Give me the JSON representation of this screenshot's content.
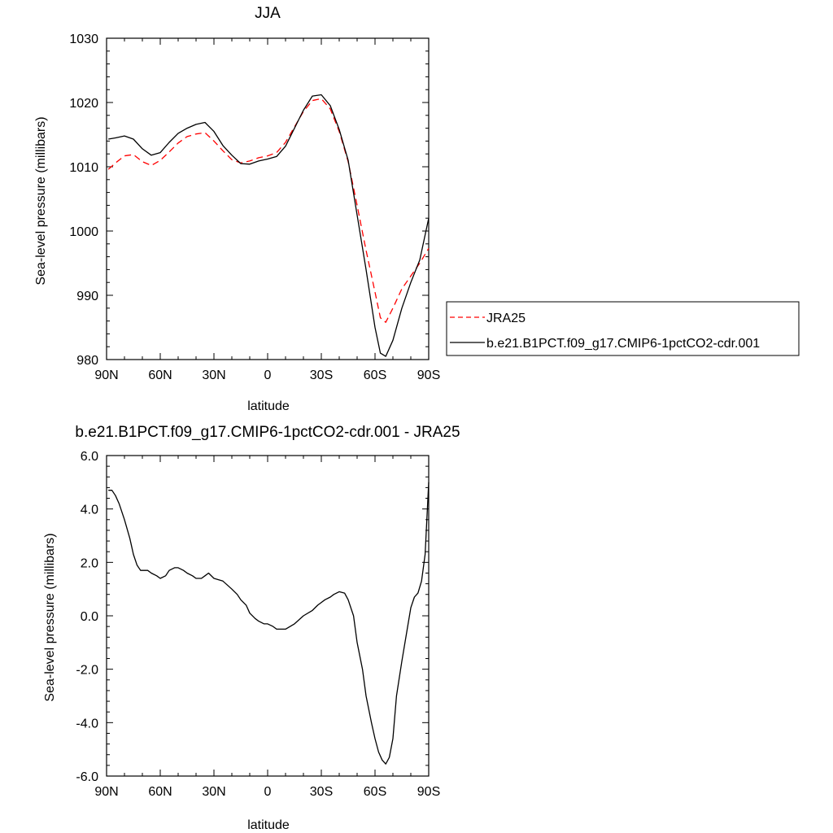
{
  "chart_data": [
    {
      "type": "line",
      "title": "JJA",
      "xlabel": "latitude",
      "ylabel": "Sea-level pressure (millibars)",
      "xlim": [
        90,
        -90
      ],
      "ylim": [
        980,
        1030
      ],
      "x_ticks": [
        {
          "value": 90,
          "label": "90N"
        },
        {
          "value": 60,
          "label": "60N"
        },
        {
          "value": 30,
          "label": "30N"
        },
        {
          "value": 0,
          "label": "0"
        },
        {
          "value": -30,
          "label": "30S"
        },
        {
          "value": -60,
          "label": "60S"
        },
        {
          "value": -90,
          "label": "90S"
        }
      ],
      "y_ticks": [
        {
          "value": 980,
          "label": "980"
        },
        {
          "value": 990,
          "label": "990"
        },
        {
          "value": 1000,
          "label": "1000"
        },
        {
          "value": 1010,
          "label": "1010"
        },
        {
          "value": 1020,
          "label": "1020"
        },
        {
          "value": 1030,
          "label": "1030"
        }
      ],
      "legend_position": "right",
      "series": [
        {
          "name": "JRA25",
          "color": "#ff0000",
          "dash": "dashed",
          "x": [
            89,
            85,
            80,
            75,
            70,
            65,
            60,
            55,
            50,
            45,
            40,
            35,
            30,
            25,
            20,
            15,
            10,
            5,
            0,
            -5,
            -10,
            -15,
            -20,
            -25,
            -30,
            -35,
            -40,
            -45,
            -50,
            -55,
            -60,
            -63,
            -66,
            -70,
            -75,
            -80,
            -85,
            -90
          ],
          "y": [
            1009.6,
            1010.6,
            1011.7,
            1011.9,
            1010.8,
            1010.2,
            1011.0,
            1012.3,
            1013.7,
            1014.7,
            1015.1,
            1015.3,
            1014.0,
            1012.5,
            1011.1,
            1010.6,
            1010.9,
            1011.4,
            1011.7,
            1012.2,
            1013.8,
            1016.2,
            1018.6,
            1020.3,
            1020.6,
            1019.0,
            1015.5,
            1010.8,
            1004.0,
            997.0,
            990.5,
            986.5,
            985.8,
            988.0,
            991.0,
            993.0,
            995.0,
            997.3
          ]
        },
        {
          "name": "b.e21.B1PCT.f09_g17.CMIP6-1pctCO2-cdr.001",
          "color": "#000000",
          "dash": "solid",
          "x": [
            89,
            85,
            80,
            75,
            70,
            65,
            60,
            55,
            50,
            45,
            40,
            35,
            30,
            25,
            20,
            15,
            10,
            5,
            0,
            -5,
            -10,
            -15,
            -20,
            -25,
            -30,
            -35,
            -40,
            -45,
            -50,
            -55,
            -60,
            -63,
            -66,
            -70,
            -75,
            -80,
            -85,
            -90
          ],
          "y": [
            1014.3,
            1014.5,
            1014.8,
            1014.3,
            1012.8,
            1011.8,
            1012.2,
            1013.8,
            1015.2,
            1016.0,
            1016.6,
            1016.9,
            1015.5,
            1013.3,
            1011.8,
            1010.5,
            1010.4,
            1010.9,
            1011.2,
            1011.6,
            1013.2,
            1016.0,
            1018.8,
            1021.0,
            1021.2,
            1019.5,
            1015.8,
            1011.0,
            1002.5,
            994.0,
            985.0,
            981.0,
            980.5,
            983.0,
            988.0,
            992.0,
            995.5,
            1002.0
          ]
        }
      ]
    },
    {
      "type": "line",
      "title": "b.e21.B1PCT.f09_g17.CMIP6-1pctCO2-cdr.001 - JRA25",
      "xlabel": "latitude",
      "ylabel": "Sea-level pressure (millibars)",
      "xlim": [
        90,
        -90
      ],
      "ylim": [
        -6,
        6
      ],
      "x_ticks": [
        {
          "value": 90,
          "label": "90N"
        },
        {
          "value": 60,
          "label": "60N"
        },
        {
          "value": 30,
          "label": "30N"
        },
        {
          "value": 0,
          "label": "0"
        },
        {
          "value": -30,
          "label": "30S"
        },
        {
          "value": -60,
          "label": "60S"
        },
        {
          "value": -90,
          "label": "90S"
        }
      ],
      "y_ticks": [
        {
          "value": -6,
          "label": "-6.0"
        },
        {
          "value": -4,
          "label": "-4.0"
        },
        {
          "value": -2,
          "label": "-2.0"
        },
        {
          "value": 0,
          "label": "0.0"
        },
        {
          "value": 2,
          "label": "2.0"
        },
        {
          "value": 4,
          "label": "4.0"
        },
        {
          "value": 6,
          "label": "6.0"
        }
      ],
      "series": [
        {
          "color": "#000000",
          "dash": "solid",
          "x": [
            89,
            87,
            85,
            83,
            80,
            77,
            75,
            73,
            71,
            70,
            67,
            65,
            62,
            60,
            57,
            55,
            52,
            50,
            47,
            45,
            42,
            40,
            37,
            35,
            33,
            30,
            25,
            20,
            17,
            15,
            12,
            10,
            7,
            5,
            2,
            0,
            -3,
            -5,
            -8,
            -10,
            -15,
            -20,
            -25,
            -28,
            -30,
            -32,
            -35,
            -37,
            -40,
            -43,
            -45,
            -48,
            -50,
            -53,
            -55,
            -58,
            -60,
            -62,
            -64,
            -66,
            -68,
            -70,
            -72,
            -75,
            -78,
            -80,
            -82,
            -84,
            -86,
            -88,
            -90
          ],
          "y": [
            4.7,
            4.7,
            4.5,
            4.2,
            3.6,
            2.9,
            2.3,
            1.9,
            1.7,
            1.7,
            1.7,
            1.6,
            1.5,
            1.4,
            1.5,
            1.7,
            1.8,
            1.8,
            1.7,
            1.6,
            1.5,
            1.4,
            1.4,
            1.5,
            1.6,
            1.4,
            1.3,
            1.0,
            0.8,
            0.6,
            0.4,
            0.1,
            -0.1,
            -0.2,
            -0.3,
            -0.3,
            -0.4,
            -0.5,
            -0.5,
            -0.5,
            -0.3,
            0.0,
            0.2,
            0.4,
            0.5,
            0.6,
            0.7,
            0.8,
            0.9,
            0.85,
            0.6,
            0.0,
            -1.0,
            -2.0,
            -3.0,
            -4.0,
            -4.6,
            -5.1,
            -5.4,
            -5.55,
            -5.3,
            -4.6,
            -3.0,
            -1.7,
            -0.5,
            0.3,
            0.7,
            0.85,
            1.3,
            2.3,
            5.0
          ]
        }
      ]
    }
  ],
  "legend": {
    "entries": [
      {
        "label": "JRA25",
        "color": "#ff0000",
        "dash": "dashed"
      },
      {
        "label": "b.e21.B1PCT.f09_g17.CMIP6-1pctCO2-cdr.001",
        "color": "#000000",
        "dash": "solid"
      }
    ]
  }
}
